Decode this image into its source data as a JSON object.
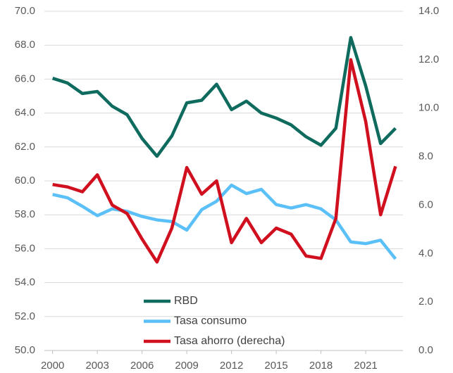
{
  "chart_data": {
    "type": "line",
    "x": [
      2000,
      2001,
      2002,
      2003,
      2004,
      2005,
      2006,
      2007,
      2008,
      2009,
      2010,
      2011,
      2012,
      2013,
      2014,
      2015,
      2016,
      2017,
      2018,
      2019,
      2020,
      2021,
      2022,
      2023
    ],
    "series": [
      {
        "name": "RBD",
        "color": "#0e6b5e",
        "values": [
          66.05,
          65.77,
          65.15,
          65.27,
          64.4,
          63.9,
          62.5,
          61.45,
          62.65,
          64.6,
          64.75,
          65.7,
          64.2,
          64.7,
          64.0,
          63.7,
          63.3,
          62.6,
          62.1,
          63.1,
          68.45,
          65.6,
          62.2,
          63.1
        ]
      },
      {
        "name": "Tasa consumo",
        "color": "#5bc0f8",
        "values": [
          59.2,
          59.0,
          58.5,
          57.95,
          58.35,
          58.2,
          57.9,
          57.7,
          57.6,
          57.1,
          58.3,
          58.8,
          59.75,
          59.25,
          59.5,
          58.6,
          58.4,
          58.6,
          58.35,
          57.7,
          56.4,
          56.3,
          56.5,
          55.4
        ]
      },
      {
        "name": "Tasa ahorro (derecha)",
        "color": "#d0101e",
        "axis": "y2",
        "values": [
          6.85,
          6.75,
          6.55,
          7.25,
          6.0,
          5.65,
          4.6,
          3.65,
          5.05,
          7.55,
          6.45,
          7.0,
          4.45,
          5.45,
          4.45,
          5.05,
          4.8,
          3.9,
          3.8,
          5.45,
          12.0,
          9.45,
          5.6,
          7.6
        ]
      }
    ],
    "xlim": [
      1999.45,
      2023.5
    ],
    "xticks": [
      2000,
      2003,
      2006,
      2009,
      2012,
      2015,
      2018,
      2021
    ],
    "ylim": [
      50,
      70
    ],
    "yticks": [
      {
        "value": 50,
        "label": "50.0"
      },
      {
        "value": 52,
        "label": "52.0"
      },
      {
        "value": 54,
        "label": "54.0"
      },
      {
        "value": 56,
        "label": "56.0"
      },
      {
        "value": 58,
        "label": "58.0"
      },
      {
        "value": 60,
        "label": "60.0"
      },
      {
        "value": 62,
        "label": "62.0"
      },
      {
        "value": 64,
        "label": "64.0"
      },
      {
        "value": 66,
        "label": "66.0"
      },
      {
        "value": 68,
        "label": "68.0"
      },
      {
        "value": 70,
        "label": "70.0"
      }
    ],
    "y2lim": [
      0,
      14
    ],
    "y2ticks": [
      {
        "value": 0,
        "label": "0.0"
      },
      {
        "value": 2,
        "label": "2.0"
      },
      {
        "value": 4,
        "label": "4.0"
      },
      {
        "value": 6,
        "label": "6.0"
      },
      {
        "value": 8,
        "label": "8.0"
      },
      {
        "value": 10,
        "label": "10.0"
      },
      {
        "value": 12,
        "label": "12.0"
      },
      {
        "value": 14,
        "label": "14.0"
      }
    ],
    "grid": true
  }
}
